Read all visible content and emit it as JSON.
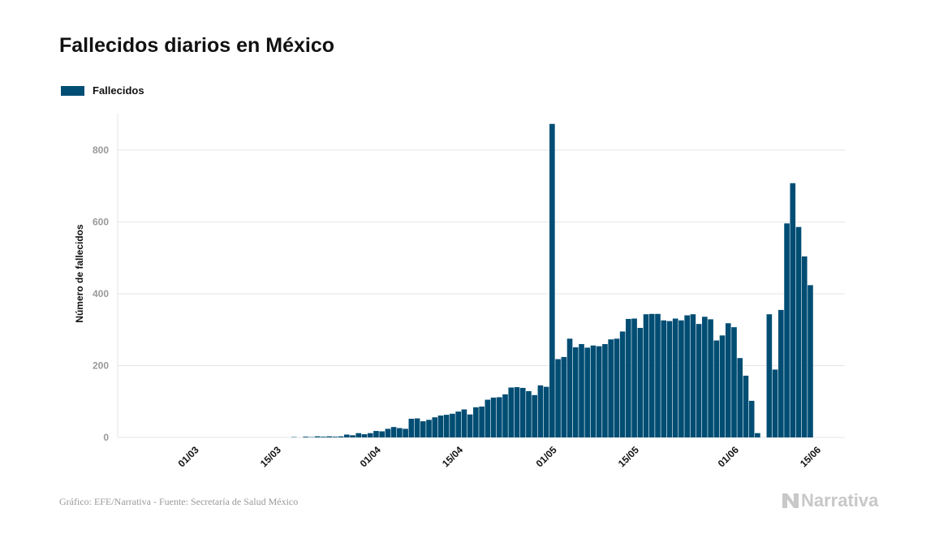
{
  "title": "Fallecidos diarios en México",
  "footer": "Gráfico: EFE/Narrativa - Fuente: Secretaría de Salud México",
  "brand": "Narrativa",
  "colors": {
    "bar": "#004d74",
    "grid": "#e6e6e6",
    "tick": "#999999"
  },
  "chart_data": {
    "type": "bar",
    "title": "Fallecidos diarios en México",
    "xlabel": "",
    "ylabel": "Número de fallecidos",
    "ylim": [
      0,
      900
    ],
    "yticks": [
      0,
      200,
      400,
      600,
      800
    ],
    "grid": true,
    "legend_position": "top-left",
    "x_start": "2020-02-23",
    "x_tick_labels": [
      {
        "date": "2020-03-01",
        "label": "01/03"
      },
      {
        "date": "2020-03-15",
        "label": "15/03"
      },
      {
        "date": "2020-04-01",
        "label": "01/04"
      },
      {
        "date": "2020-04-15",
        "label": "15/04"
      },
      {
        "date": "2020-05-01",
        "label": "01/05"
      },
      {
        "date": "2020-05-15",
        "label": "15/05"
      },
      {
        "date": "2020-06-01",
        "label": "01/06"
      },
      {
        "date": "2020-06-15",
        "label": "15/06"
      }
    ],
    "series": [
      {
        "name": "Fallecidos",
        "color": "#004d74",
        "values": [
          0,
          0,
          0,
          0,
          0,
          0,
          0,
          0,
          0,
          0,
          0,
          0,
          0,
          0,
          0,
          0,
          0,
          0,
          0,
          0,
          0,
          0,
          0,
          0,
          1,
          0,
          2,
          1,
          3,
          2,
          3,
          2,
          3,
          8,
          6,
          12,
          9,
          12,
          18,
          17,
          24,
          29,
          26,
          24,
          52,
          53,
          45,
          49,
          56,
          61,
          63,
          66,
          72,
          78,
          64,
          84,
          86,
          105,
          111,
          112,
          120,
          139,
          140,
          138,
          129,
          118,
          145,
          141,
          873,
          218,
          224,
          275,
          251,
          260,
          250,
          256,
          254,
          260,
          273,
          275,
          295,
          330,
          331,
          305,
          343,
          344,
          344,
          326,
          324,
          331,
          326,
          340,
          343,
          316,
          336,
          329,
          270,
          284,
          318,
          307,
          221,
          172,
          102,
          12,
          0,
          343,
          189,
          355,
          596,
          708,
          586,
          504,
          424
        ]
      }
    ]
  }
}
